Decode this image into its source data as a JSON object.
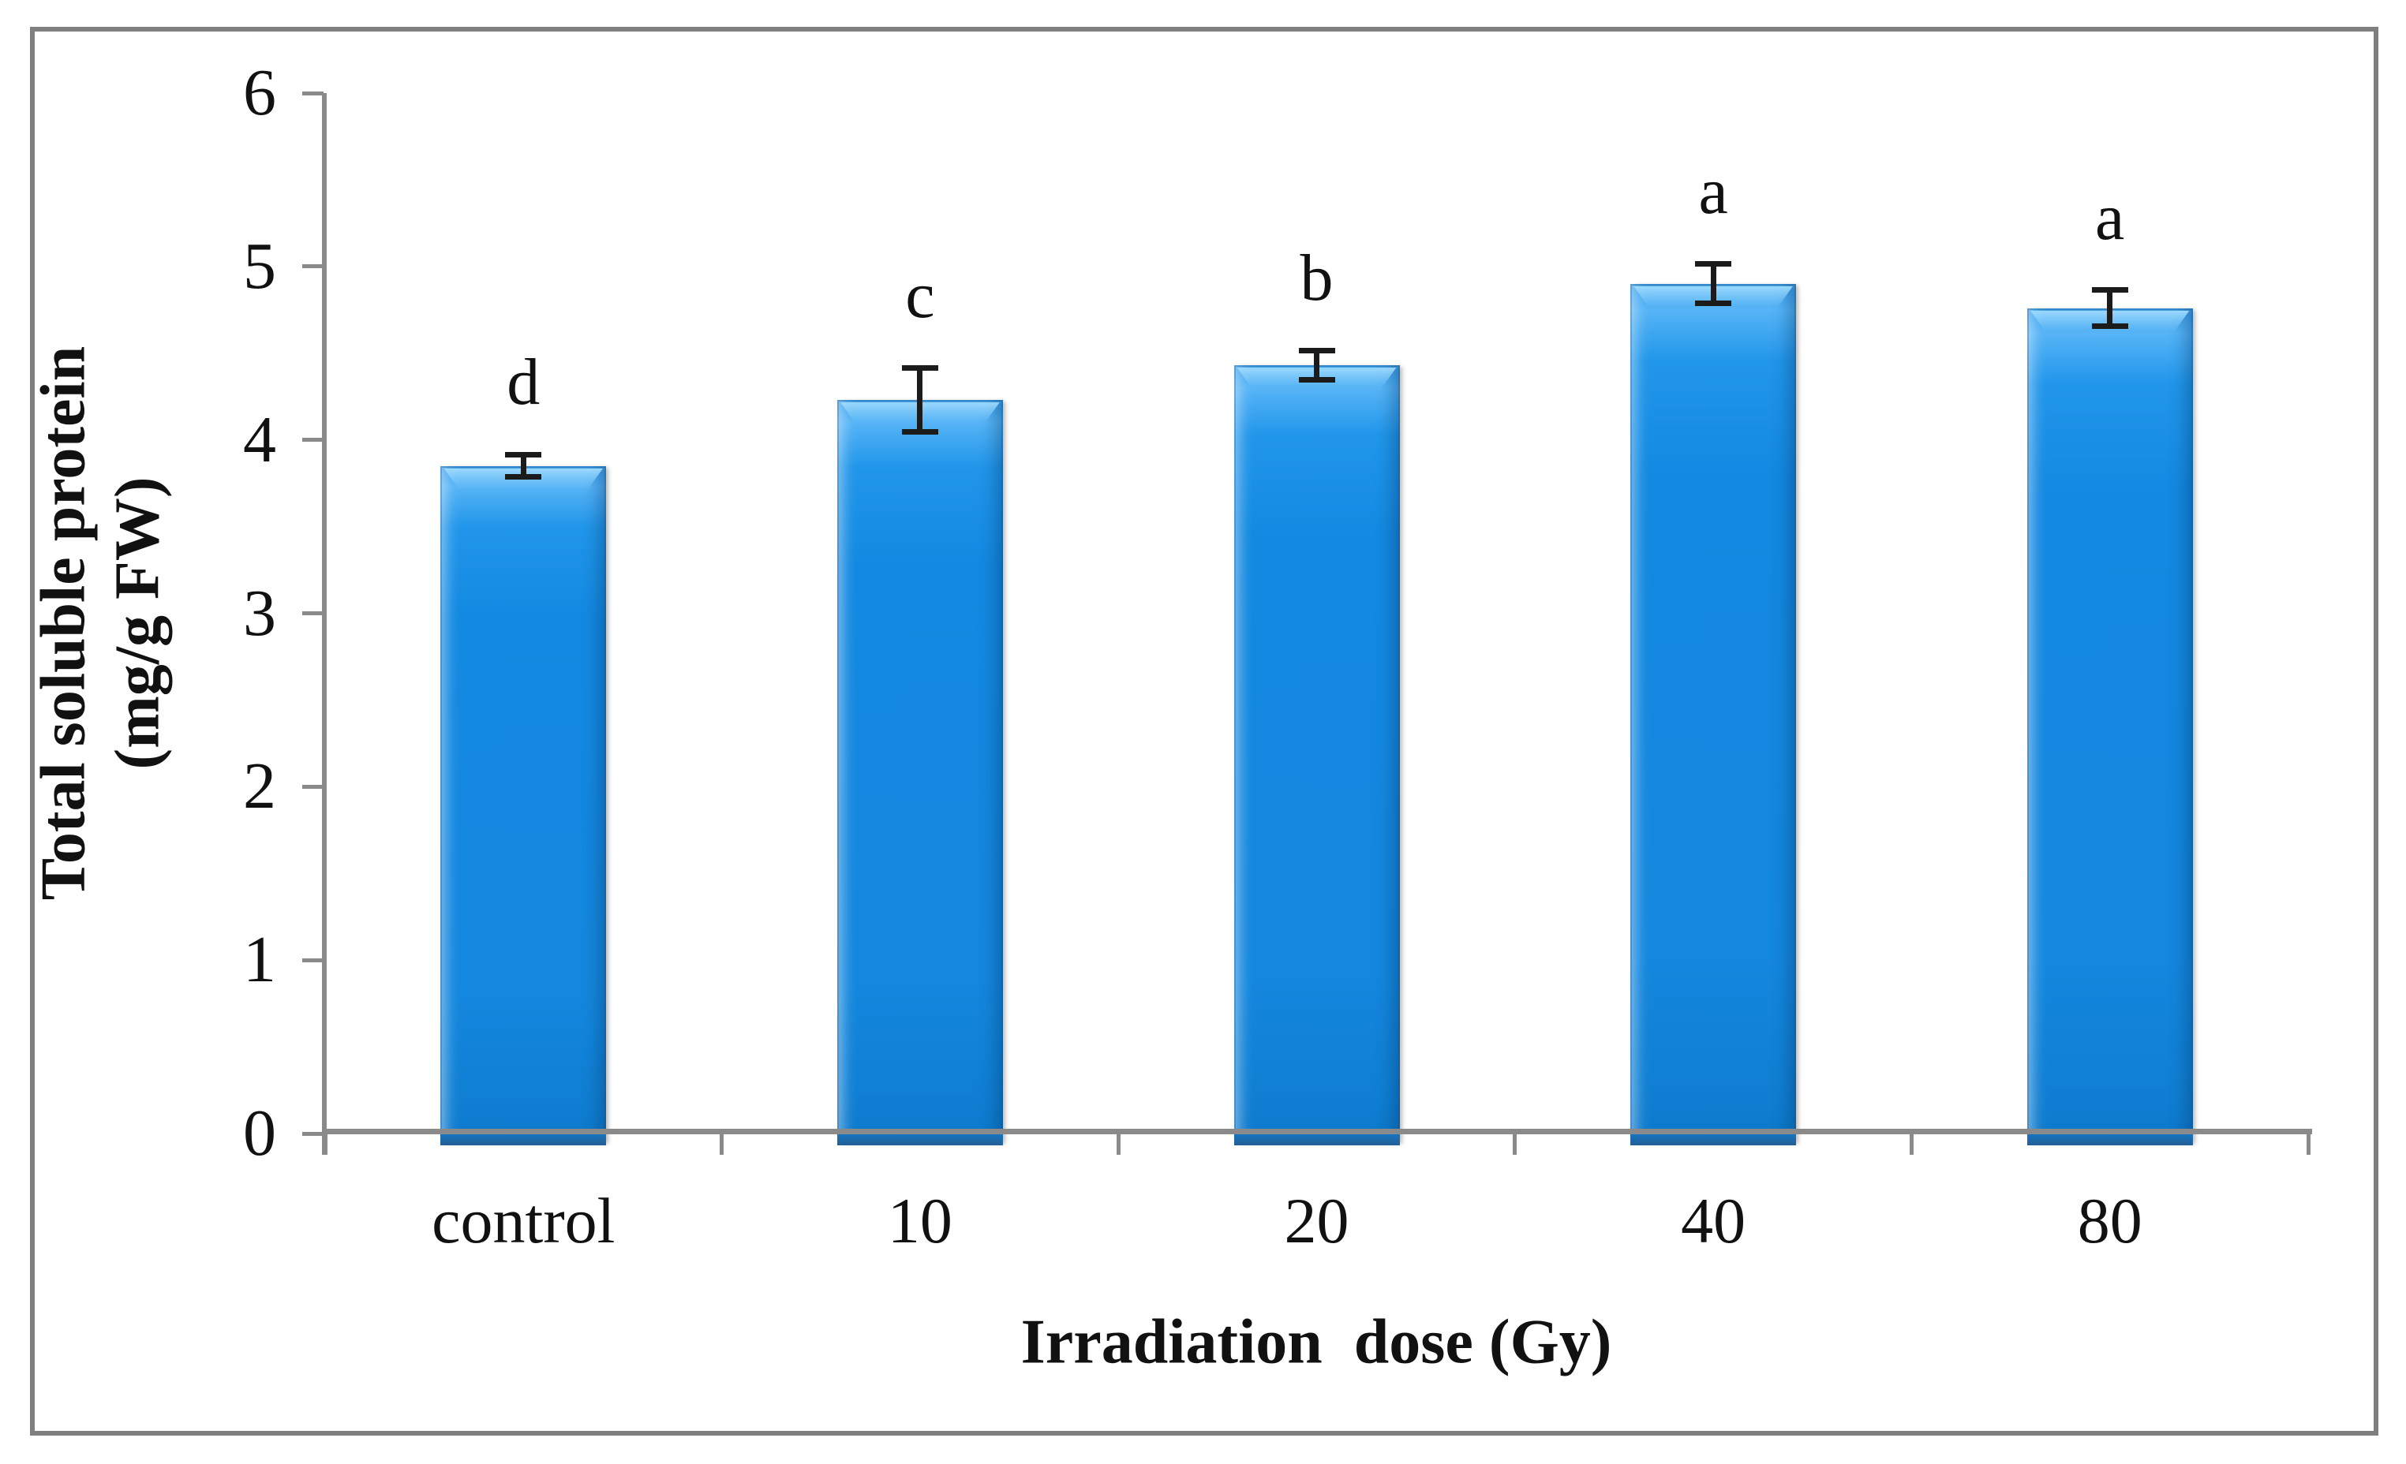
{
  "chart_data": {
    "type": "bar",
    "title": "",
    "categories": [
      "control",
      "10",
      "20",
      "40",
      "80"
    ],
    "values": [
      3.85,
      4.23,
      4.43,
      4.9,
      4.76
    ],
    "errors": [
      0.08,
      0.2,
      0.1,
      0.13,
      0.12
    ],
    "sig_letters": [
      "d",
      "c",
      "b",
      "a",
      "a"
    ],
    "xlabel": "Irradiation  dose (Gy)",
    "ylabel": "Total soluble protein (mg/g FW)",
    "ylabel_lines": [
      "Total soluble protein",
      "(mg/g FW)"
    ],
    "ylim": [
      0,
      6
    ],
    "yticks": [
      0,
      1,
      2,
      3,
      4,
      5,
      6
    ],
    "grid": false,
    "legend": "none",
    "bar_color": "#1487DE",
    "bar_highlight": "#56B4F6",
    "error_bar_color": "#1B1B1B",
    "axis_color": "#8A8A8A",
    "border_color": "#7F7F7F"
  }
}
